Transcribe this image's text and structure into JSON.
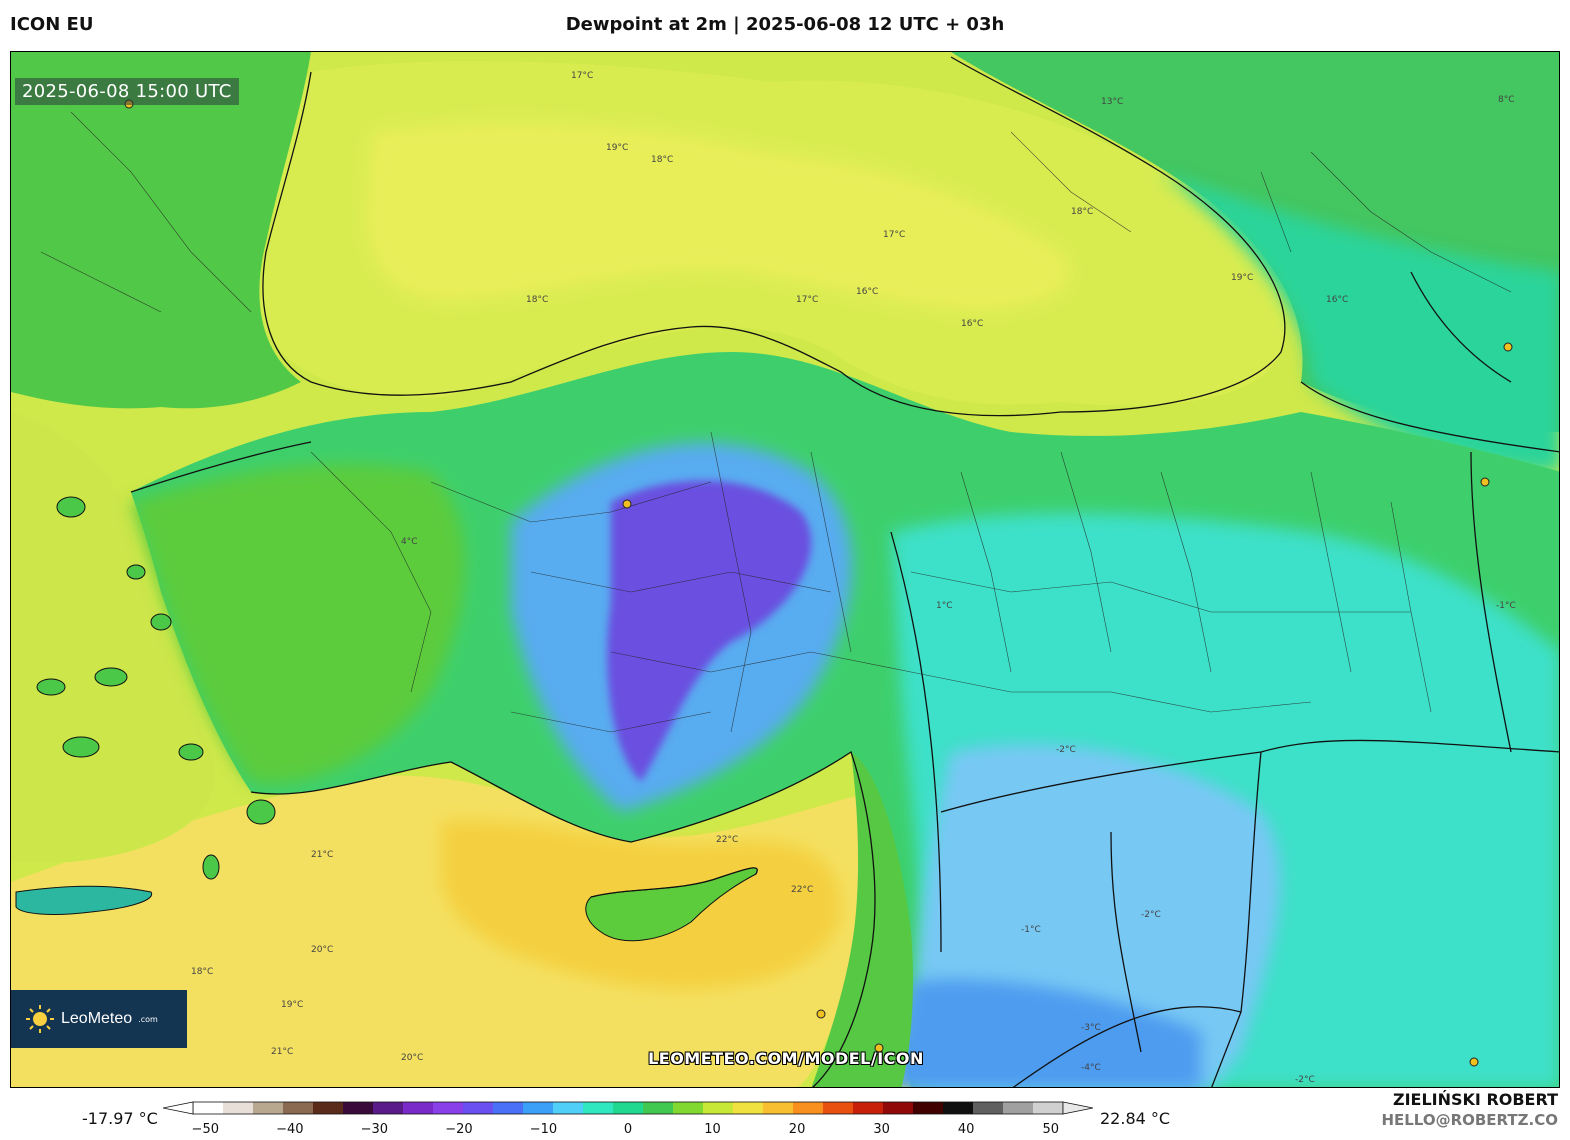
{
  "header": {
    "model_name": "ICON EU",
    "title": "Dewpoint at 2m | 2025-06-08 12 UTC + 03h"
  },
  "map": {
    "valid_time": "2025-06-08 15:00 UTC",
    "source_url": "LEOMETEO.COM/MODEL/ICON",
    "logo": {
      "name": "LeoMeteo",
      "suffix": ".com",
      "icon": "sun-icon"
    },
    "contour_labels": [
      "17°C",
      "19°C",
      "18°C",
      "17°C",
      "16°C",
      "18°C",
      "19°C",
      "16°C",
      "17°C",
      "18°C",
      "13°C",
      "8°C",
      "16°C",
      "21°C",
      "20°C",
      "22°C",
      "22°C",
      "18°C",
      "19°C",
      "21°C",
      "20°C",
      "-2°C",
      "-1°C",
      "-4°C",
      "-2°C",
      "1°C",
      "-3°C",
      "4°C",
      "-2°C",
      "-1°C"
    ],
    "colors": {
      "sea_warm": "#f4dc5a",
      "sea_mild": "#d4ec4a",
      "land_green": "#4ccb4a",
      "land_teal": "#20d6a0",
      "land_cyan": "#40e0d8",
      "dry_blue": "#5ab0f0",
      "very_dry": "#6a4ce0",
      "border": "#111111"
    }
  },
  "legend": {
    "min_value": "-17.97 °C",
    "max_value": "22.84 °C",
    "ticks": [
      "−50",
      "−40",
      "−30",
      "−20",
      "−10",
      "0",
      "10",
      "20",
      "30",
      "40",
      "50"
    ],
    "tick_values": [
      -50,
      -40,
      -30,
      -20,
      -10,
      0,
      10,
      20,
      30,
      40,
      50
    ],
    "range": [
      -55,
      55
    ],
    "colors": [
      "#ffffff",
      "#e8e0d8",
      "#b8a890",
      "#8a6a50",
      "#5a2a1a",
      "#3a0a3a",
      "#5a1a8a",
      "#7a2ac8",
      "#8a40e8",
      "#6a50f0",
      "#4a70f8",
      "#3aa0f8",
      "#50d0f8",
      "#30e8c0",
      "#20d890",
      "#40c850",
      "#80d830",
      "#c8e838",
      "#f0e040",
      "#f8c030",
      "#f89020",
      "#e85010",
      "#c82008",
      "#900808",
      "#400000",
      "#101010",
      "#606060",
      "#a0a0a0",
      "#d0d0d0"
    ]
  },
  "footer": {
    "author": "ZIELIŃSKI ROBERT",
    "email": "HELLO@ROBERTZ.CO"
  }
}
